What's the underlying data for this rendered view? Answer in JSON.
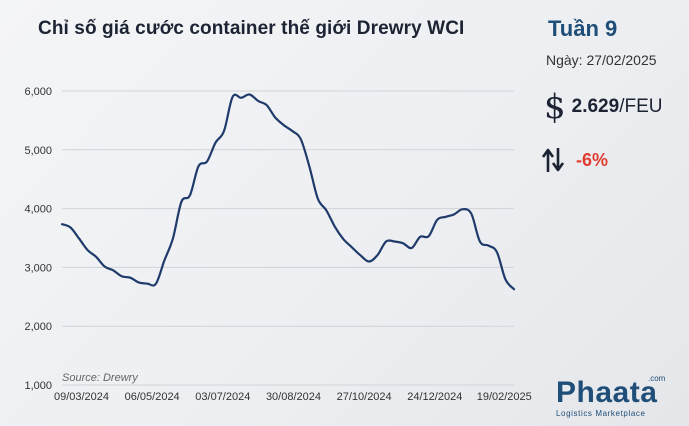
{
  "header": {
    "title": "Chỉ số giá cước container thế giới Drewry WCI",
    "week": "Tuần 9",
    "date": "Ngày: 27/02/2025",
    "price_value": "2.629",
    "price_unit": "/FEU",
    "change": "-6%",
    "dollar_symbol": "$"
  },
  "source": "Source: Drewry",
  "logo": {
    "name": "Phaata",
    "com": ".com",
    "tagline": "Logistics Marketplace"
  },
  "colors": {
    "line": "#1f3b6b",
    "accent": "#1f4e79",
    "negative": "#e03c31",
    "grid": "#d0d3d8"
  },
  "icons": {
    "price": "dollar-icon",
    "change": "up-down-arrows-icon"
  },
  "chart_data": {
    "type": "line",
    "title": "Chỉ số giá cước container thế giới Drewry WCI",
    "xlabel": "",
    "ylabel": "",
    "ylim": [
      1000,
      6000
    ],
    "yticks": [
      "1,000",
      "2,000",
      "3,000",
      "4,000",
      "5,000",
      "6,000"
    ],
    "ytick_values": [
      1000,
      2000,
      3000,
      4000,
      5000,
      6000
    ],
    "xticks": [
      "09/03/2024",
      "06/05/2024",
      "03/07/2024",
      "30/08/2024",
      "27/10/2024",
      "24/12/2024",
      "19/02/2025"
    ],
    "grid": "horizontal",
    "x_start": "2024-02-22",
    "x_end": "2025-02-27",
    "series": [
      {
        "values": [
          [
            "2024-02-22",
            3735
          ],
          [
            "2024-02-29",
            3678
          ],
          [
            "2024-03-07",
            3490
          ],
          [
            "2024-03-14",
            3295
          ],
          [
            "2024-03-21",
            3180
          ],
          [
            "2024-03-28",
            3015
          ],
          [
            "2024-04-04",
            2950
          ],
          [
            "2024-04-11",
            2850
          ],
          [
            "2024-04-18",
            2825
          ],
          [
            "2024-04-25",
            2745
          ],
          [
            "2024-05-02",
            2725
          ],
          [
            "2024-05-09",
            2720
          ],
          [
            "2024-05-16",
            3115
          ],
          [
            "2024-05-23",
            3490
          ],
          [
            "2024-05-30",
            4115
          ],
          [
            "2024-06-06",
            4225
          ],
          [
            "2024-06-13",
            4720
          ],
          [
            "2024-06-20",
            4800
          ],
          [
            "2024-06-27",
            5120
          ],
          [
            "2024-07-04",
            5320
          ],
          [
            "2024-07-11",
            5900
          ],
          [
            "2024-07-18",
            5885
          ],
          [
            "2024-07-25",
            5940
          ],
          [
            "2024-08-01",
            5830
          ],
          [
            "2024-08-08",
            5760
          ],
          [
            "2024-08-15",
            5550
          ],
          [
            "2024-08-22",
            5420
          ],
          [
            "2024-08-29",
            5320
          ],
          [
            "2024-09-05",
            5180
          ],
          [
            "2024-09-12",
            4720
          ],
          [
            "2024-09-19",
            4170
          ],
          [
            "2024-09-26",
            3970
          ],
          [
            "2024-10-03",
            3690
          ],
          [
            "2024-10-10",
            3480
          ],
          [
            "2024-10-17",
            3340
          ],
          [
            "2024-10-24",
            3205
          ],
          [
            "2024-10-31",
            3100
          ],
          [
            "2024-11-07",
            3210
          ],
          [
            "2024-11-14",
            3440
          ],
          [
            "2024-11-21",
            3440
          ],
          [
            "2024-11-28",
            3410
          ],
          [
            "2024-12-05",
            3330
          ],
          [
            "2024-12-12",
            3520
          ],
          [
            "2024-12-19",
            3530
          ],
          [
            "2024-12-26",
            3810
          ],
          [
            "2025-01-02",
            3860
          ],
          [
            "2025-01-09",
            3905
          ],
          [
            "2025-01-16",
            3990
          ],
          [
            "2025-01-23",
            3910
          ],
          [
            "2025-01-30",
            3440
          ],
          [
            "2025-02-06",
            3370
          ],
          [
            "2025-02-13",
            3260
          ],
          [
            "2025-02-20",
            2795
          ],
          [
            "2025-02-27",
            2629
          ]
        ]
      }
    ]
  }
}
